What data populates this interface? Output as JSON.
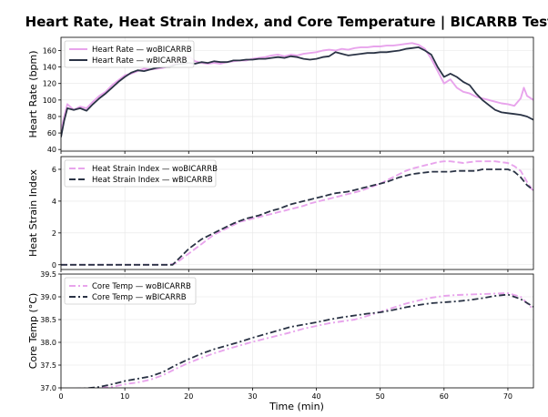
{
  "chart_data": {
    "title": "Heart Rate, Heat Strain Index, and Core Temperature | BICARRB Test",
    "xlabel": "Time (min)",
    "xlim": [
      0,
      74
    ],
    "xticks": [
      0,
      10,
      20,
      30,
      40,
      50,
      60,
      70
    ],
    "colors": {
      "wo": "#E8A4EC",
      "w": "#2A3345"
    },
    "panels": [
      {
        "type": "line",
        "ylabel": "Heart Rate (bpm)",
        "ylim": [
          38,
          176
        ],
        "yticks": [
          40,
          60,
          80,
          100,
          120,
          140,
          160
        ],
        "legend_position": "top-left",
        "series": [
          {
            "name": "Heart Rate — woBICARRB",
            "style": "solid",
            "key": "wo",
            "x": [
              0,
              0.5,
              1,
              2,
              3,
              4,
              5,
              6,
              7,
              8,
              9,
              10,
              11,
              12,
              13,
              14,
              15,
              16,
              17,
              18,
              19,
              20,
              21,
              22,
              23,
              24,
              25,
              26,
              27,
              28,
              29,
              30,
              31,
              32,
              33,
              34,
              35,
              36,
              37,
              38,
              39,
              40,
              41,
              42,
              43,
              44,
              45,
              46,
              47,
              48,
              49,
              50,
              51,
              52,
              53,
              54,
              55,
              56,
              57,
              58,
              59,
              60,
              61,
              62,
              63,
              64,
              65,
              66,
              67,
              68,
              69,
              70,
              71,
              72,
              72.5,
              73,
              74
            ],
            "y": [
              62,
              80,
              95,
              88,
              92,
              90,
              98,
              105,
              110,
              118,
              124,
              130,
              132,
              135,
              138,
              137,
              138,
              139,
              141,
              145,
              152,
              153,
              147,
              145,
              144,
              145,
              144,
              146,
              147,
              148,
              148,
              150,
              151,
              152,
              154,
              155,
              153,
              155,
              154,
              156,
              157,
              158,
              160,
              161,
              160,
              162,
              161,
              163,
              164,
              164,
              165,
              165,
              166,
              166,
              167,
              168,
              169,
              167,
              162,
              150,
              135,
              120,
              125,
              115,
              110,
              108,
              104,
              102,
              100,
              98,
              96,
              95,
              93,
              102,
              115,
              105,
              100
            ]
          },
          {
            "name": "Heart Rate — wBICARRB",
            "style": "solid",
            "key": "w",
            "x": [
              0,
              0.5,
              1,
              2,
              3,
              4,
              5,
              6,
              7,
              8,
              9,
              10,
              11,
              12,
              13,
              14,
              15,
              16,
              17,
              18,
              19,
              20,
              21,
              22,
              23,
              24,
              25,
              26,
              27,
              28,
              29,
              30,
              31,
              32,
              33,
              34,
              35,
              36,
              37,
              38,
              39,
              40,
              41,
              42,
              43,
              44,
              45,
              46,
              47,
              48,
              49,
              50,
              51,
              52,
              53,
              54,
              55,
              56,
              57,
              58,
              59,
              60,
              61,
              62,
              63,
              64,
              65,
              66,
              67,
              68,
              69,
              70,
              71,
              72,
              73,
              74
            ],
            "y": [
              55,
              75,
              90,
              88,
              90,
              87,
              95,
              102,
              108,
              115,
              122,
              128,
              133,
              136,
              135,
              137,
              139,
              140,
              140,
              143,
              144,
              145,
              144,
              146,
              145,
              147,
              146,
              146,
              148,
              148,
              149,
              149,
              150,
              150,
              151,
              152,
              151,
              153,
              152,
              150,
              149,
              150,
              152,
              153,
              158,
              156,
              154,
              155,
              156,
              157,
              157,
              158,
              158,
              159,
              160,
              162,
              163,
              164,
              160,
              155,
              140,
              128,
              132,
              128,
              122,
              118,
              108,
              100,
              94,
              88,
              85,
              84,
              83,
              82,
              80,
              76
            ]
          }
        ]
      },
      {
        "type": "line",
        "ylabel": "Heat Strain Index",
        "ylim": [
          -0.3,
          6.8
        ],
        "yticks": [
          0,
          2,
          4,
          6
        ],
        "legend_position": "top-left",
        "series": [
          {
            "name": "Heat Strain Index — woBICARRB",
            "style": "dashed",
            "key": "wo",
            "x": [
              0,
              17,
              18,
              19,
              20,
              21,
              22,
              23,
              24,
              25,
              26,
              27,
              28,
              29,
              30,
              31,
              32,
              33,
              34,
              35,
              36,
              37,
              38,
              39,
              40,
              41,
              42,
              43,
              44,
              45,
              46,
              47,
              48,
              49,
              50,
              51,
              52,
              53,
              54,
              55,
              56,
              57,
              58,
              59,
              60,
              61,
              62,
              63,
              64,
              65,
              66,
              67,
              68,
              69,
              70,
              71,
              72,
              73,
              74
            ],
            "y": [
              0,
              0,
              0.1,
              0.4,
              0.7,
              1.0,
              1.3,
              1.6,
              1.9,
              2.1,
              2.3,
              2.5,
              2.7,
              2.8,
              2.9,
              3.0,
              3.1,
              3.2,
              3.3,
              3.4,
              3.5,
              3.6,
              3.7,
              3.85,
              3.95,
              4.05,
              4.15,
              4.25,
              4.35,
              4.45,
              4.55,
              4.65,
              4.8,
              4.95,
              5.1,
              5.3,
              5.5,
              5.7,
              5.9,
              6.05,
              6.15,
              6.25,
              6.35,
              6.45,
              6.5,
              6.5,
              6.45,
              6.4,
              6.45,
              6.5,
              6.5,
              6.5,
              6.5,
              6.45,
              6.4,
              6.2,
              5.9,
              5.2,
              4.6
            ]
          },
          {
            "name": "Heat Strain Index — wBICARRB",
            "style": "dashed",
            "key": "w",
            "x": [
              0,
              17.5,
              18,
              19,
              20,
              21,
              22,
              23,
              24,
              25,
              26,
              27,
              28,
              29,
              30,
              31,
              32,
              33,
              34,
              35,
              36,
              37,
              38,
              39,
              40,
              41,
              42,
              43,
              44,
              45,
              46,
              47,
              48,
              49,
              50,
              51,
              52,
              53,
              54,
              55,
              56,
              57,
              58,
              59,
              60,
              61,
              62,
              63,
              64,
              65,
              66,
              67,
              68,
              69,
              70,
              71,
              72,
              73,
              74
            ],
            "y": [
              0,
              0,
              0.2,
              0.6,
              1.0,
              1.3,
              1.6,
              1.8,
              2.0,
              2.2,
              2.4,
              2.6,
              2.75,
              2.9,
              3.0,
              3.1,
              3.25,
              3.4,
              3.5,
              3.65,
              3.8,
              3.9,
              4.0,
              4.1,
              4.2,
              4.3,
              4.4,
              4.5,
              4.55,
              4.6,
              4.7,
              4.8,
              4.9,
              5.0,
              5.1,
              5.2,
              5.35,
              5.5,
              5.6,
              5.7,
              5.75,
              5.8,
              5.85,
              5.85,
              5.85,
              5.85,
              5.9,
              5.9,
              5.9,
              5.9,
              6.0,
              6.0,
              6.0,
              6.0,
              6.0,
              5.85,
              5.5,
              5.0,
              4.7
            ]
          }
        ]
      },
      {
        "type": "line",
        "ylabel": "Core Temp (°C)",
        "ylim": [
          37.0,
          39.5
        ],
        "yticks": [
          37.0,
          37.5,
          38.0,
          38.5,
          39.0,
          39.5
        ],
        "legend_position": "top-left",
        "series": [
          {
            "name": "Core Temp — woBICARRB",
            "style": "dashdot",
            "key": "wo",
            "x": [
              0,
              2,
              4,
              6,
              8,
              10,
              12,
              14,
              16,
              18,
              20,
              22,
              24,
              26,
              28,
              30,
              32,
              34,
              36,
              38,
              40,
              42,
              44,
              46,
              48,
              50,
              52,
              54,
              56,
              58,
              60,
              62,
              64,
              66,
              68,
              70,
              72,
              74
            ],
            "y": [
              36.98,
              36.98,
              36.99,
              37.0,
              37.02,
              37.08,
              37.12,
              37.18,
              37.28,
              37.42,
              37.55,
              37.66,
              37.76,
              37.85,
              37.93,
              38.01,
              38.08,
              38.15,
              38.22,
              38.3,
              38.36,
              38.42,
              38.46,
              38.5,
              38.58,
              38.67,
              38.76,
              38.85,
              38.92,
              38.98,
              39.02,
              39.04,
              39.05,
              39.06,
              39.07,
              39.08,
              39.0,
              38.72
            ]
          },
          {
            "name": "Core Temp — wBICARRB",
            "style": "dashdot",
            "key": "w",
            "x": [
              0,
              2,
              4,
              6,
              8,
              10,
              12,
              14,
              16,
              18,
              20,
              22,
              24,
              26,
              28,
              30,
              32,
              34,
              36,
              38,
              40,
              42,
              44,
              46,
              48,
              50,
              52,
              54,
              56,
              58,
              60,
              62,
              64,
              66,
              68,
              70,
              72,
              74
            ],
            "y": [
              36.98,
              36.98,
              36.99,
              37.02,
              37.08,
              37.15,
              37.2,
              37.25,
              37.35,
              37.5,
              37.63,
              37.75,
              37.85,
              37.93,
              38.01,
              38.1,
              38.18,
              38.26,
              38.34,
              38.39,
              38.44,
              38.5,
              38.55,
              38.59,
              38.63,
              38.66,
              38.71,
              38.77,
              38.82,
              38.86,
              38.88,
              38.9,
              38.93,
              38.97,
              39.02,
              39.05,
              38.95,
              38.78
            ]
          }
        ]
      }
    ]
  }
}
